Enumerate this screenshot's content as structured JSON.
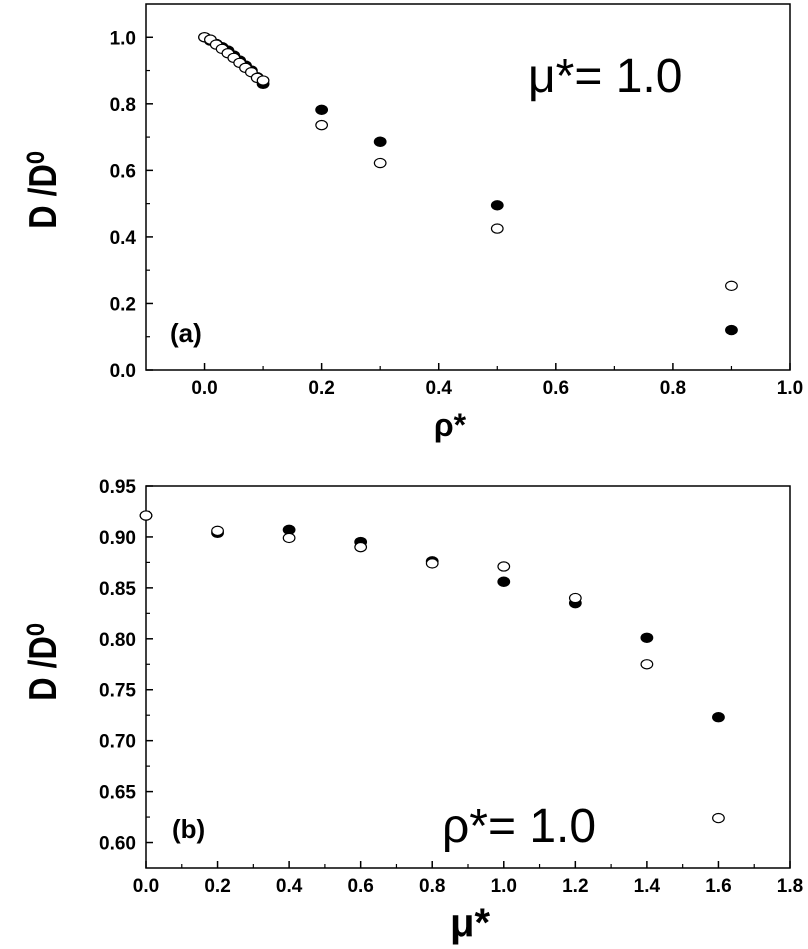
{
  "chart_data": [
    {
      "type": "scatter",
      "panel_label": "(a)",
      "annotation": "μ*= 1.0",
      "xlabel": "ρ*",
      "ylabel": "D /D⁰",
      "xlim": [
        -0.1,
        1.0
      ],
      "ylim": [
        0.0,
        1.1
      ],
      "x_ticks": [
        0.0,
        0.2,
        0.4,
        0.6,
        0.8,
        1.0
      ],
      "x_tick_labels": [
        "0.0",
        "0.2",
        "0.4",
        "0.6",
        "0.8",
        "1.0"
      ],
      "y_ticks": [
        0.0,
        0.2,
        0.4,
        0.6,
        0.8,
        1.0
      ],
      "y_tick_labels": [
        "0.0",
        "0.2",
        "0.4",
        "0.6",
        "0.8",
        "1.0"
      ],
      "grid": false,
      "series": [
        {
          "marker": "filled-circle",
          "points": [
            [
              0.0,
              1.0
            ],
            [
              0.01,
              0.99
            ],
            [
              0.02,
              0.98
            ],
            [
              0.03,
              0.97
            ],
            [
              0.04,
              0.96
            ],
            [
              0.05,
              0.945
            ],
            [
              0.06,
              0.93
            ],
            [
              0.07,
              0.915
            ],
            [
              0.08,
              0.9
            ],
            [
              0.09,
              0.88
            ],
            [
              0.1,
              0.86
            ],
            [
              0.2,
              0.782
            ],
            [
              0.3,
              0.686
            ],
            [
              0.5,
              0.495
            ],
            [
              0.9,
              0.12
            ]
          ]
        },
        {
          "marker": "open-circle",
          "points": [
            [
              0.0,
              1.0
            ],
            [
              0.01,
              0.993
            ],
            [
              0.02,
              0.978
            ],
            [
              0.03,
              0.965
            ],
            [
              0.04,
              0.952
            ],
            [
              0.05,
              0.938
            ],
            [
              0.06,
              0.923
            ],
            [
              0.07,
              0.908
            ],
            [
              0.08,
              0.895
            ],
            [
              0.09,
              0.878
            ],
            [
              0.1,
              0.87
            ],
            [
              0.2,
              0.736
            ],
            [
              0.3,
              0.622
            ],
            [
              0.5,
              0.425
            ],
            [
              0.9,
              0.253
            ]
          ]
        }
      ]
    },
    {
      "type": "scatter",
      "panel_label": "(b)",
      "annotation": "ρ*= 1.0",
      "xlabel": "μ*",
      "ylabel": "D /D⁰",
      "xlim": [
        0.0,
        1.8
      ],
      "ylim": [
        0.575,
        0.95
      ],
      "x_ticks": [
        0.0,
        0.2,
        0.4,
        0.6,
        0.8,
        1.0,
        1.2,
        1.4,
        1.6,
        1.8
      ],
      "x_tick_labels": [
        "0.0",
        "0.2",
        "0.4",
        "0.6",
        "0.8",
        "1.0",
        "1.2",
        "1.4",
        "1.6",
        "1.8"
      ],
      "y_ticks": [
        0.6,
        0.65,
        0.7,
        0.75,
        0.8,
        0.85,
        0.9,
        0.95
      ],
      "y_tick_labels": [
        "0.60",
        "0.65",
        "0.70",
        "0.75",
        "0.80",
        "0.85",
        "0.90",
        "0.95"
      ],
      "grid": false,
      "series": [
        {
          "marker": "filled-circle",
          "points": [
            [
              0.0,
              0.921
            ],
            [
              0.2,
              0.904
            ],
            [
              0.4,
              0.907
            ],
            [
              0.6,
              0.895
            ],
            [
              0.8,
              0.876
            ],
            [
              1.0,
              0.856
            ],
            [
              1.2,
              0.835
            ],
            [
              1.4,
              0.801
            ],
            [
              1.6,
              0.723
            ]
          ]
        },
        {
          "marker": "open-circle",
          "points": [
            [
              0.0,
              0.921
            ],
            [
              0.2,
              0.906
            ],
            [
              0.4,
              0.899
            ],
            [
              0.6,
              0.89
            ],
            [
              0.8,
              0.874
            ],
            [
              1.0,
              0.871
            ],
            [
              1.2,
              0.84
            ],
            [
              1.4,
              0.775
            ],
            [
              1.6,
              0.624
            ]
          ]
        }
      ]
    }
  ]
}
